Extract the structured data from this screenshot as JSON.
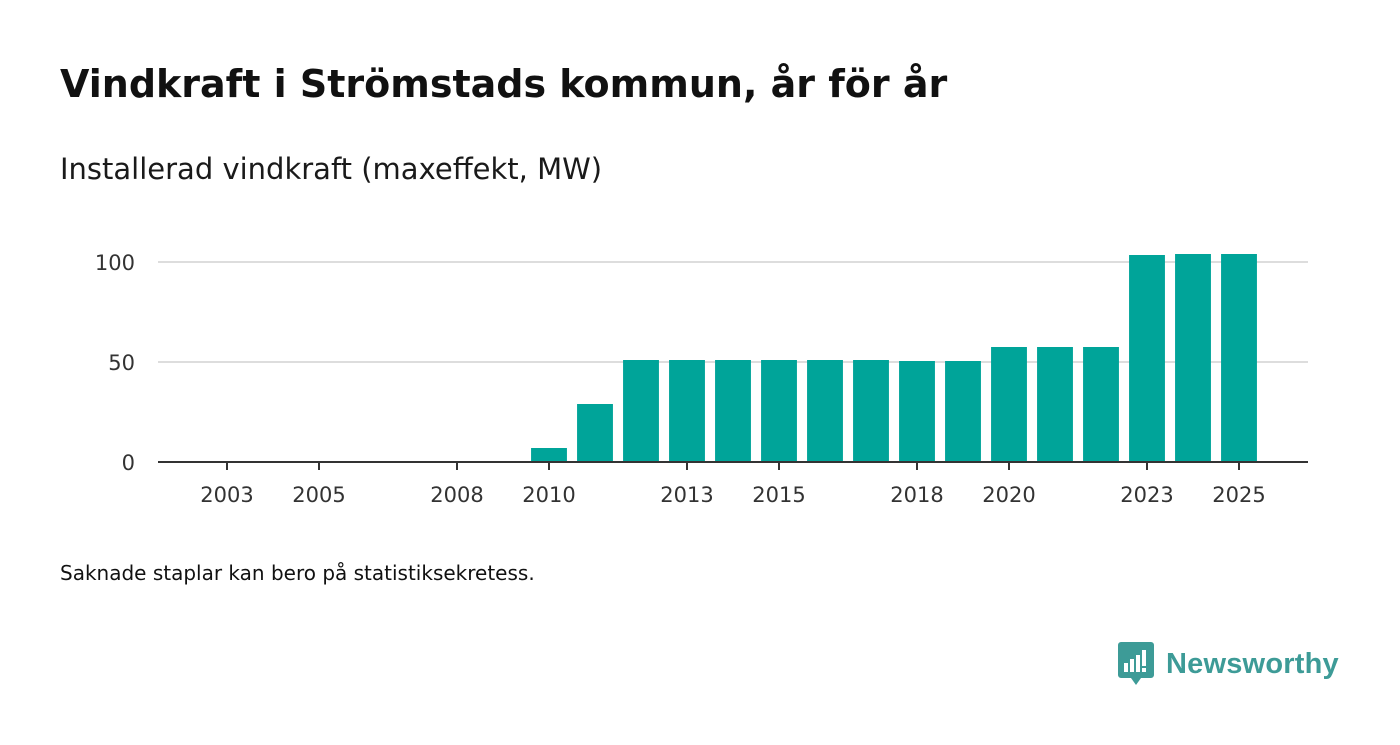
{
  "title": "Vindkraft i Strömstads kommun, år för år",
  "subtitle": "Installerad vindkraft (maxeffekt, MW)",
  "note": "Saknade staplar kan bero på statistiksekretess.",
  "brand": {
    "name": "Newsworthy",
    "logo_icon": "newsworthy-logo-icon",
    "color": "#3d9b97"
  },
  "colors": {
    "bar": "#00a499",
    "grid": "#dddddd",
    "axis": "#333333"
  },
  "chart_data": {
    "type": "bar",
    "title": "Installerad vindkraft (maxeffekt, MW)",
    "xlabel": "",
    "ylabel": "",
    "x_range": [
      2001.5,
      2026.5
    ],
    "ylim": [
      0,
      100
    ],
    "y_ticks": [
      0,
      50,
      100
    ],
    "y_tick_labels": [
      "0",
      "50",
      "100"
    ],
    "x_ticks": [
      2003,
      2005,
      2008,
      2010,
      2013,
      2015,
      2018,
      2020,
      2023,
      2025
    ],
    "x_tick_labels": [
      "2003",
      "2005",
      "2008",
      "2010",
      "2013",
      "2015",
      "2018",
      "2020",
      "2023",
      "2025"
    ],
    "grid": true,
    "bars": [
      {
        "year": 2010,
        "value": 7
      },
      {
        "year": 2011,
        "value": 29
      },
      {
        "year": 2012,
        "value": 51
      },
      {
        "year": 2013,
        "value": 51
      },
      {
        "year": 2014,
        "value": 51
      },
      {
        "year": 2015,
        "value": 51
      },
      {
        "year": 2016,
        "value": 51
      },
      {
        "year": 2017,
        "value": 51
      },
      {
        "year": 2018,
        "value": 50.5
      },
      {
        "year": 2019,
        "value": 50.5
      },
      {
        "year": 2020,
        "value": 57.5
      },
      {
        "year": 2021,
        "value": 57.5
      },
      {
        "year": 2022,
        "value": 57.5
      },
      {
        "year": 2023,
        "value": 103.5
      },
      {
        "year": 2024,
        "value": 104
      },
      {
        "year": 2025,
        "value": 104
      }
    ]
  }
}
